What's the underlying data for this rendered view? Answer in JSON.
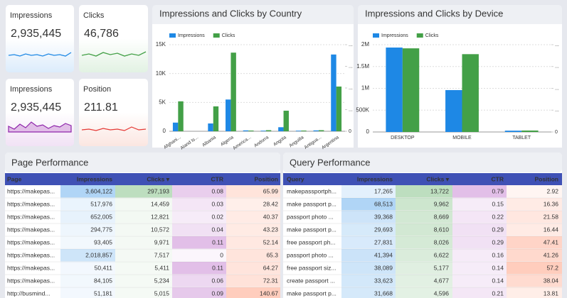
{
  "scorecards": [
    {
      "label": "Impressions",
      "value": "2,935,445"
    },
    {
      "label": "Clicks",
      "value": "46,786"
    },
    {
      "label": "Impressions",
      "value": "2,935,445"
    },
    {
      "label": "Position",
      "value": "211.81"
    }
  ],
  "chart_data": [
    {
      "type": "bar",
      "title": "Impressions and Clicks by Country",
      "categories": [
        "Afghani...",
        "Aland Is...",
        "Albania",
        "Algeria",
        "America...",
        "Andorra",
        "Angola",
        "Anguilla",
        "Antigua...",
        "Argentina"
      ],
      "series": [
        {
          "name": "Impressions",
          "color": "#1e88e5",
          "values": [
            1500,
            0,
            1350,
            5500,
            150,
            100,
            700,
            100,
            150,
            13300
          ]
        },
        {
          "name": "Clicks",
          "color": "#43a047",
          "axis": "y2",
          "values": [
            83,
            0,
            69,
            218,
            2,
            3,
            57,
            2,
            3,
            124
          ]
        }
      ],
      "ylim": [
        0,
        15000
      ],
      "yticks": [
        0,
        {
          "value": 5000,
          "label": "5K"
        },
        {
          "value": 10000,
          "label": "10K"
        },
        {
          "value": 15000,
          "label": "15K"
        }
      ],
      "y2lim": [
        0,
        240
      ],
      "y2ticks": [
        0,
        {
          "value": 60,
          "label": "..."
        },
        {
          "value": 120,
          "label": "..."
        },
        {
          "value": 180,
          "label": "..."
        },
        {
          "value": 240,
          "label": "..."
        }
      ],
      "grid": true,
      "legend": "top-left"
    },
    {
      "type": "bar",
      "title": "Impressions and Clicks by Device",
      "categories": [
        "DESKTOP",
        "MOBILE",
        "TABLET"
      ],
      "series": [
        {
          "name": "Impressions",
          "color": "#1e88e5",
          "values": [
            1935000,
            960000,
            30000
          ]
        },
        {
          "name": "Clicks",
          "color": "#43a047",
          "axis": "y2",
          "values": [
            23000,
            21400,
            400
          ]
        }
      ],
      "ylim": [
        0,
        2000000
      ],
      "yticks": [
        0,
        {
          "value": 500000,
          "label": "500K"
        },
        {
          "value": 1000000,
          "label": "1M"
        },
        {
          "value": 1500000,
          "label": "1.5M"
        },
        {
          "value": 2000000,
          "label": "2M"
        }
      ],
      "y2lim": [
        0,
        24000
      ],
      "y2ticks": [
        0,
        {
          "value": 6000,
          "label": "..."
        },
        {
          "value": 12000,
          "label": "..."
        },
        {
          "value": 18000,
          "label": "..."
        },
        {
          "value": 24000,
          "label": "..."
        }
      ],
      "grid": true,
      "legend": "top-left"
    }
  ],
  "tables": [
    {
      "title": "Page Performance",
      "columns": [
        "Page",
        "Impressions",
        "Clicks ▾",
        "CTR",
        "Position"
      ],
      "rows": [
        [
          "https://makepas...",
          "3,604,122",
          "297,193",
          "0.08",
          "65.99"
        ],
        [
          "https://makepas...",
          "517,976",
          "14,459",
          "0.03",
          "28.42"
        ],
        [
          "https://makepas...",
          "652,005",
          "12,821",
          "0.02",
          "40.37"
        ],
        [
          "https://makepas...",
          "294,775",
          "10,572",
          "0.04",
          "43.23"
        ],
        [
          "https://makepas...",
          "93,405",
          "9,971",
          "0.11",
          "52.14"
        ],
        [
          "https://makepas...",
          "2,018,857",
          "7,517",
          "0",
          "65.3"
        ],
        [
          "https://makepas...",
          "50,411",
          "5,411",
          "0.11",
          "64.27"
        ],
        [
          "https://makepas...",
          "84,105",
          "5,234",
          "0.06",
          "72.31"
        ],
        [
          "http://busmind...",
          "51,181",
          "5,015",
          "0.09",
          "140.67"
        ]
      ]
    },
    {
      "title": "Query Performance",
      "columns": [
        "Query",
        "Impressions",
        "Clicks ▾",
        "CTR",
        "Position"
      ],
      "rows": [
        [
          "makepassportph...",
          "17,265",
          "13,722",
          "0.79",
          "2.92"
        ],
        [
          "make passport p...",
          "68,513",
          "9,962",
          "0.15",
          "16.36"
        ],
        [
          "passport photo ...",
          "39,368",
          "8,669",
          "0.22",
          "21.58"
        ],
        [
          "make passport p...",
          "29,693",
          "8,610",
          "0.29",
          "16.44"
        ],
        [
          "free passport ph...",
          "27,831",
          "8,026",
          "0.29",
          "47.41"
        ],
        [
          "passport photo ...",
          "41,394",
          "6,622",
          "0.16",
          "41.26"
        ],
        [
          "free passport siz...",
          "38,089",
          "5,177",
          "0.14",
          "57.2"
        ],
        [
          "create passport ...",
          "33,623",
          "4,677",
          "0.14",
          "38.04"
        ],
        [
          "make passport p...",
          "31,668",
          "4,596",
          "0.21",
          "13.81"
        ]
      ]
    }
  ]
}
